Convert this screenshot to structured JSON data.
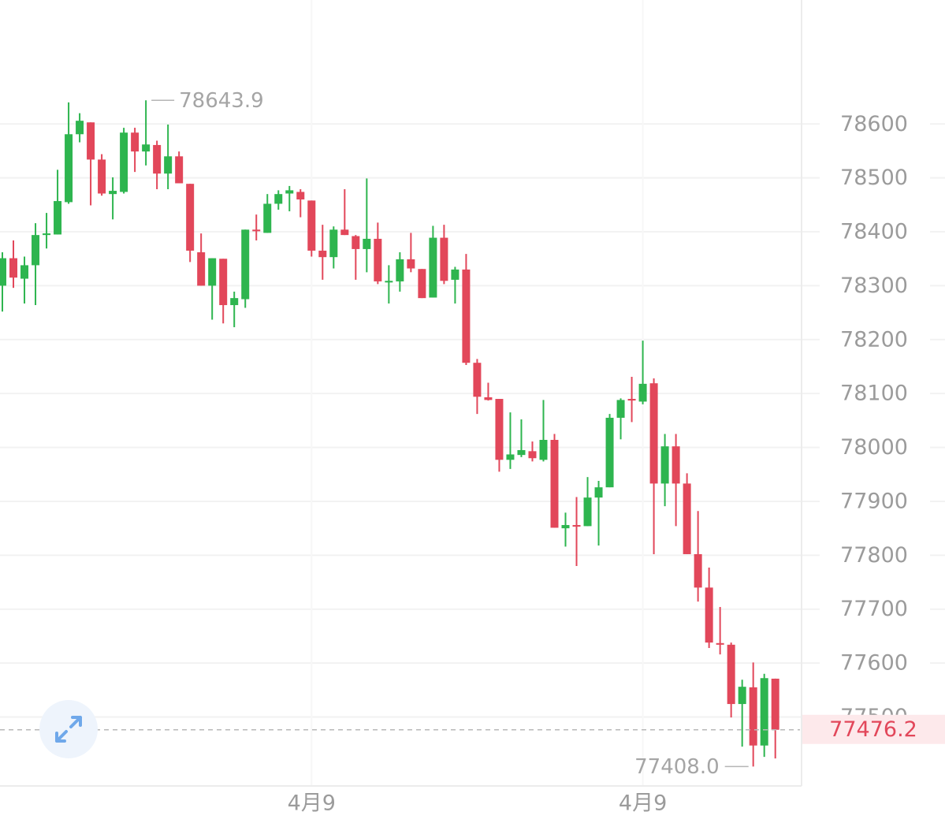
{
  "chart_data": {
    "type": "candlestick",
    "categories": [
      null,
      null,
      null,
      null,
      null,
      null,
      null,
      null,
      null,
      null,
      null,
      null,
      null,
      null,
      null,
      null,
      null,
      null,
      null,
      null,
      null,
      null,
      null,
      null,
      null,
      null,
      null,
      null,
      "4月9",
      null,
      null,
      null,
      null,
      null,
      null,
      null,
      null,
      null,
      null,
      null,
      null,
      null,
      null,
      null,
      null,
      null,
      null,
      null,
      null,
      null,
      null,
      null,
      null,
      null,
      null,
      null,
      null,
      null,
      "4月9",
      null,
      null,
      null,
      null,
      null,
      null,
      null,
      null,
      null,
      null,
      null,
      null
    ],
    "open": [
      78300,
      78351,
      78313,
      78338,
      78394,
      78395,
      78455,
      78581,
      78603,
      78534,
      78470,
      78474,
      78584,
      78549,
      78561,
      78508,
      78540,
      78489,
      78362,
      78300,
      78350,
      78264,
      78275,
      78404,
      78398,
      78452,
      78471,
      78474,
      78458,
      78365,
      78353,
      78404,
      78392,
      78368,
      78387,
      78306,
      78308,
      78349,
      78331,
      78278,
      78389,
      78311,
      78330,
      78157,
      78093,
      78090,
      77977,
      77986,
      77993,
      77977,
      78014,
      77850,
      77856,
      77854,
      77907,
      77926,
      78055,
      78090,
      78085,
      78119,
      77933,
      78002,
      77933,
      77802,
      77740,
      77637,
      77634,
      77524,
      77555,
      77447,
      77571
    ],
    "high": [
      78362,
      78384,
      78354,
      78416,
      78435,
      78515,
      78640,
      78620,
      78603,
      78544,
      78501,
      78593,
      78593,
      78643.9,
      78569,
      78599,
      78549,
      78489,
      78397,
      78351,
      78350,
      78289,
      78404,
      78432,
      78470,
      78477,
      78485,
      78479,
      78458,
      78413,
      78410,
      78479,
      78394,
      78499,
      78417,
      78338,
      78362,
      78398,
      78331,
      78411,
      78413,
      78335,
      78359,
      78164,
      78120,
      78090,
      78065,
      78052,
      78011,
      78088,
      78025,
      77879,
      77908,
      77945,
      77938,
      78062,
      78091,
      78131,
      78198,
      78128,
      78025,
      78025,
      77952,
      77882,
      77777,
      77704,
      77638,
      77569,
      77601,
      77580,
      77571
    ],
    "low": [
      78252,
      78296,
      78267,
      78264,
      78369,
      78395,
      78452,
      78566,
      78449,
      78467,
      78423,
      78471,
      78511,
      78523,
      78479,
      78479,
      78490,
      78344,
      78300,
      78237,
      78230,
      78223,
      78259,
      78384,
      78398,
      78441,
      78438,
      78427,
      78354,
      78311,
      78332,
      78394,
      78311,
      78325,
      78303,
      78267,
      78289,
      78325,
      78277,
      78278,
      78303,
      78267,
      78153,
      78062,
      78087,
      77955,
      77960,
      77982,
      77974,
      77974,
      77851,
      77816,
      77780,
      77854,
      77818,
      77926,
      78015,
      78047,
      78080,
      77802,
      77891,
      77854,
      77802,
      77714,
      77628,
      77616,
      77499,
      77445,
      77408,
      77426,
      77423
    ],
    "close": [
      78351,
      78315,
      78338,
      78394,
      78397,
      78457,
      78581,
      78606,
      78534,
      78471,
      78476,
      78584,
      78549,
      78562,
      78508,
      78540,
      78490,
      78365,
      78300,
      78351,
      78264,
      78277,
      78404,
      78401,
      78452,
      78470,
      78477,
      78460,
      78365,
      78353,
      78404,
      78394,
      78368,
      78387,
      78308,
      78309,
      78349,
      78332,
      78277,
      78389,
      78309,
      78330,
      78157,
      78094,
      78088,
      77977,
      77987,
      77995,
      77980,
      78014,
      77851,
      77856,
      77853,
      77907,
      77926,
      78055,
      78088,
      78087,
      78118,
      77933,
      78002,
      77933,
      77802,
      77740,
      77638,
      77634,
      77524,
      77556,
      77447,
      77572,
      77476.2
    ],
    "up_color": "#2eb54f",
    "down_color": "#e2475a",
    "ylim": [
      77372,
      78830
    ],
    "yticks": [
      77500,
      77600,
      77700,
      77800,
      77900,
      78000,
      78100,
      78200,
      78300,
      78400,
      78500,
      78600
    ],
    "grid": true,
    "max_label": 78643.9,
    "min_label": {
      "value": 77408,
      "label": "77408.0"
    },
    "last_price": 77476.2
  }
}
